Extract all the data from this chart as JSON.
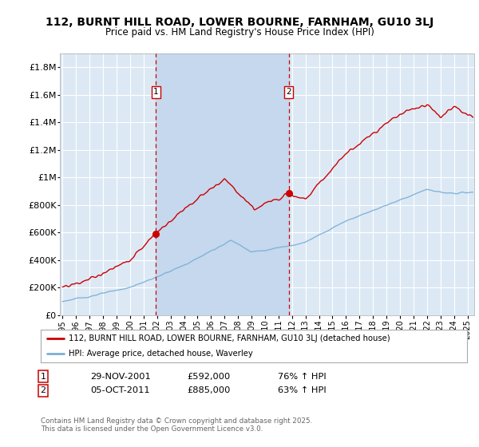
{
  "title": "112, BURNT HILL ROAD, LOWER BOURNE, FARNHAM, GU10 3LJ",
  "subtitle": "Price paid vs. HM Land Registry's House Price Index (HPI)",
  "ylabel_ticks": [
    "£0",
    "£200K",
    "£400K",
    "£600K",
    "£800K",
    "£1M",
    "£1.2M",
    "£1.4M",
    "£1.6M",
    "£1.8M"
  ],
  "ytick_values": [
    0,
    200000,
    400000,
    600000,
    800000,
    1000000,
    1200000,
    1400000,
    1600000,
    1800000
  ],
  "ylim": [
    0,
    1900000
  ],
  "background_color": "#dce9f5",
  "highlight_color": "#c5d8ed",
  "grid_color": "#ffffff",
  "legend_label_red": "112, BURNT HILL ROAD, LOWER BOURNE, FARNHAM, GU10 3LJ (detached house)",
  "legend_label_blue": "HPI: Average price, detached house, Waverley",
  "sale1_date": "29-NOV-2001",
  "sale1_price": "£592,000",
  "sale1_hpi": "76% ↑ HPI",
  "sale2_date": "05-OCT-2011",
  "sale2_price": "£885,000",
  "sale2_hpi": "63% ↑ HPI",
  "sale1_x": 2001.91,
  "sale2_x": 2011.76,
  "sale1_y": 592000,
  "sale2_y": 885000,
  "footer": "Contains HM Land Registry data © Crown copyright and database right 2025.\nThis data is licensed under the Open Government Licence v3.0.",
  "red_color": "#cc0000",
  "blue_color": "#7bafd4",
  "vline_color": "#cc0000",
  "xmin": 1994.8,
  "xmax": 2025.5
}
